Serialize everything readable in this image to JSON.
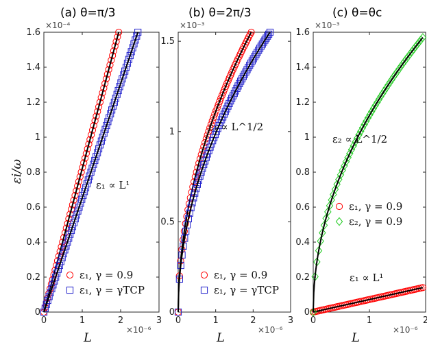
{
  "ylabel": "εi/ω",
  "chart_data": [
    {
      "type": "line",
      "title": "(a) θ=π/3",
      "xlabel": "L",
      "x_multiplier": "×10⁻⁶",
      "y_multiplier": "×10⁻⁴",
      "xlim": [
        0,
        3
      ],
      "ylim": [
        0,
        1.6
      ],
      "xticks": [
        "0",
        "1",
        "2",
        "3"
      ],
      "yticks": [
        "0",
        "0.2",
        "0.4",
        "0.6",
        "0.8",
        "1",
        "1.2",
        "1.4",
        "1.6"
      ],
      "annotation": "ε₁ ∝ L¹",
      "legend": [
        "ε₁, γ = 0.9",
        "ε₁, γ = γTCP"
      ],
      "series": [
        {
          "name": "ε₁, γ = 0.9",
          "marker": "circle",
          "color": "#ff0000",
          "x_end": 1.95,
          "y_end": 1.6,
          "exponent": 1,
          "count": 60
        },
        {
          "name": "ε₁, γ = γTCP",
          "marker": "square",
          "color": "#2222cc",
          "x_end": 2.45,
          "y_end": 1.6,
          "exponent": 1,
          "count": 72
        }
      ]
    },
    {
      "type": "line",
      "title": "(b) θ=2π/3",
      "xlabel": "L",
      "x_multiplier": "×10⁻⁶",
      "y_multiplier": "×10⁻³",
      "xlim": [
        0,
        3
      ],
      "ylim": [
        0,
        1.55
      ],
      "xticks": [
        "0",
        "1",
        "2",
        "3"
      ],
      "yticks": [
        "0",
        "0.5",
        "1",
        "1.5"
      ],
      "annotation": "ε₁ ∝ L^1/2",
      "legend": [
        "ε₁, γ = 0.9",
        "ε₁, γ = γTCP"
      ],
      "series": [
        {
          "name": "ε₁, γ = 0.9",
          "marker": "circle",
          "color": "#ff0000",
          "x_end": 1.95,
          "y_end": 1.55,
          "exponent": 0.5,
          "count": 60
        },
        {
          "name": "ε₁, γ = γTCP",
          "marker": "square",
          "color": "#2222cc",
          "x_end": 2.45,
          "y_end": 1.55,
          "exponent": 0.5,
          "count": 72
        }
      ]
    },
    {
      "type": "line",
      "title": "(c) θ=θc",
      "xlabel": "L",
      "x_multiplier": "×10⁻⁶",
      "y_multiplier": "×10⁻³",
      "xlim": [
        0,
        2
      ],
      "ylim": [
        0,
        1.6
      ],
      "xticks": [
        "0",
        "1",
        "2"
      ],
      "yticks": [
        "0",
        "0.2",
        "0.4",
        "0.6",
        "0.8",
        "1",
        "1.2",
        "1.4",
        "1.6"
      ],
      "annotation": "ε₂ ∝ L^1/2",
      "annotation2": "ε₁ ∝ L¹",
      "legend": [
        "ε₁, γ = 0.9",
        "ε₂, γ = 0.9"
      ],
      "series": [
        {
          "name": "ε₁, γ = 0.9",
          "marker": "circle",
          "color": "#ff0000",
          "x_end": 1.95,
          "y_end": 0.14,
          "exponent": 1,
          "count": 60
        },
        {
          "name": "ε₂, γ = 0.9",
          "marker": "diamond",
          "color": "#22cc22",
          "x_end": 1.95,
          "y_end": 1.57,
          "exponent": 0.5,
          "count": 60
        }
      ]
    }
  ]
}
